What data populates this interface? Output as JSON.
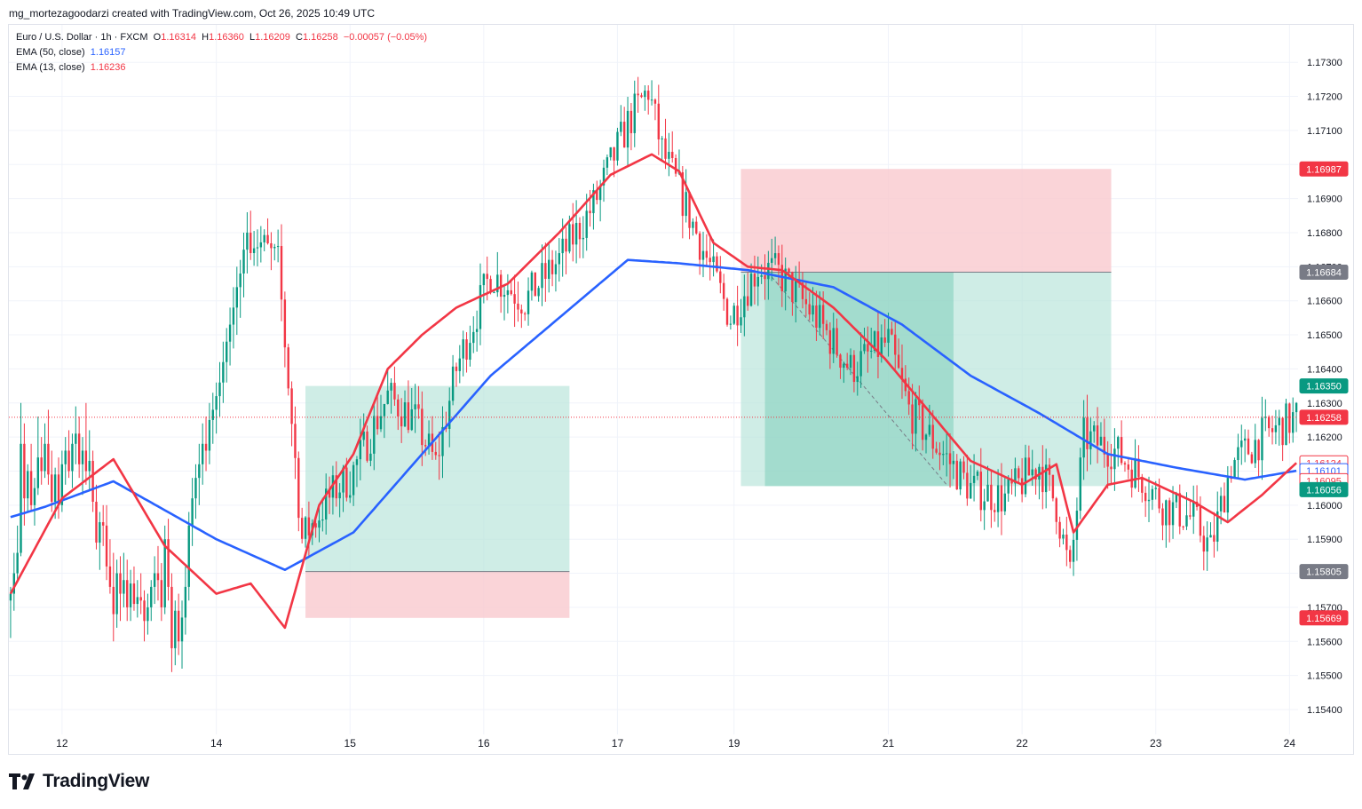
{
  "attribution": "mg_mortezagoodarzi created with TradingView.com, Oct 26, 2025 10:49 UTC",
  "brand": "TradingView",
  "legend": {
    "symbol": "Euro / U.S. Dollar · 1h · FXCM",
    "o_label": "O",
    "o": "1.16314",
    "h_label": "H",
    "h": "1.16360",
    "l_label": "L",
    "l": "1.16209",
    "c_label": "C",
    "c": "1.16258",
    "change": "−0.00057 (−0.05%)",
    "ema50_label": "EMA (50, close)",
    "ema50_value": "1.16157",
    "ema13_label": "EMA (13, close)",
    "ema13_value": "1.16236"
  },
  "chart_data": {
    "type": "candlestick",
    "xlabel": "",
    "ylabel": "",
    "ylim": [
      1.1534,
      1.1741
    ],
    "y_ticks": [
      "1.17300",
      "1.17200",
      "1.17100",
      "1.17000",
      "1.16900",
      "1.16800",
      "1.16700",
      "1.16600",
      "1.16500",
      "1.16400",
      "1.16300",
      "1.16200",
      "1.16100",
      "1.16000",
      "1.15900",
      "1.15800",
      "1.15700",
      "1.15600",
      "1.15500",
      "1.15400"
    ],
    "x_ticks": [
      {
        "label": "12",
        "i": 15
      },
      {
        "label": "14",
        "i": 60
      },
      {
        "label": "15",
        "i": 99
      },
      {
        "label": "16",
        "i": 138
      },
      {
        "label": "17",
        "i": 177
      },
      {
        "label": "19",
        "i": 211
      },
      {
        "label": "21",
        "i": 256
      },
      {
        "label": "22",
        "i": 295
      },
      {
        "label": "23",
        "i": 334
      },
      {
        "label": "24",
        "i": 373
      }
    ],
    "colors": {
      "up": "#089981",
      "down": "#f23645",
      "ema13": "#f23645",
      "ema50": "#2962ff",
      "profit": "#b6e3d8",
      "stop": "#f9c9ce",
      "last": "#f23645"
    },
    "ema50_anchors": [
      [
        0,
        1.15965
      ],
      [
        10,
        1.15995
      ],
      [
        30,
        1.1607
      ],
      [
        60,
        1.159
      ],
      [
        80,
        1.1581
      ],
      [
        100,
        1.1592
      ],
      [
        120,
        1.1615
      ],
      [
        140,
        1.1638
      ],
      [
        160,
        1.1655
      ],
      [
        180,
        1.1672
      ],
      [
        195,
        1.1671
      ],
      [
        215,
        1.1669
      ],
      [
        240,
        1.1664
      ],
      [
        260,
        1.1653
      ],
      [
        280,
        1.1638
      ],
      [
        300,
        1.1627
      ],
      [
        320,
        1.1615
      ],
      [
        340,
        1.1611
      ],
      [
        360,
        1.16075
      ],
      [
        375,
        1.16101
      ]
    ],
    "ema13_anchors": [
      [
        0,
        1.1574
      ],
      [
        15,
        1.1602
      ],
      [
        30,
        1.16135
      ],
      [
        45,
        1.1588
      ],
      [
        60,
        1.1574
      ],
      [
        70,
        1.1577
      ],
      [
        80,
        1.1564
      ],
      [
        90,
        1.16
      ],
      [
        100,
        1.1615
      ],
      [
        110,
        1.164
      ],
      [
        120,
        1.165
      ],
      [
        130,
        1.1658
      ],
      [
        145,
        1.1665
      ],
      [
        160,
        1.168
      ],
      [
        175,
        1.1697
      ],
      [
        187,
        1.1703
      ],
      [
        195,
        1.1698
      ],
      [
        205,
        1.1677
      ],
      [
        215,
        1.167
      ],
      [
        225,
        1.1669
      ],
      [
        240,
        1.1658
      ],
      [
        255,
        1.1643
      ],
      [
        270,
        1.1625
      ],
      [
        280,
        1.1613
      ],
      [
        295,
        1.1606
      ],
      [
        305,
        1.1612
      ],
      [
        310,
        1.1592
      ],
      [
        320,
        1.1606
      ],
      [
        330,
        1.1608
      ],
      [
        345,
        1.1601
      ],
      [
        355,
        1.1595
      ],
      [
        365,
        1.1603
      ],
      [
        375,
        1.16124
      ]
    ],
    "candle_count": 376,
    "candles": [
      [
        0,
        1.1572,
        1.1576,
        1.1561,
        1.1574
      ],
      [
        1,
        1.1574,
        1.1586,
        1.1569,
        1.158
      ],
      [
        2,
        1.158,
        1.1594,
        1.1578,
        1.1586
      ],
      [
        3,
        1.1586,
        1.163,
        1.1585,
        1.1618
      ],
      [
        4,
        1.1618,
        1.1624,
        1.1594,
        1.1602
      ],
      [
        5,
        1.1602,
        1.1612,
        1.1598,
        1.161
      ],
      [
        6,
        1.161,
        1.1618,
        1.1598,
        1.16
      ],
      [
        7,
        1.16,
        1.1608,
        1.1594,
        1.1605
      ],
      [
        8,
        1.1605,
        1.1626,
        1.1603,
        1.1614
      ],
      [
        9,
        1.1614,
        1.162,
        1.1606,
        1.161
      ],
      [
        10,
        1.161,
        1.1624,
        1.1608,
        1.1618
      ],
      [
        11,
        1.1618,
        1.1628,
        1.1606,
        1.1609
      ],
      [
        12,
        1.1609,
        1.1616,
        1.1598,
        1.1601
      ],
      [
        13,
        1.1601,
        1.1611,
        1.1596,
        1.1609
      ],
      [
        14,
        1.1609,
        1.1614,
        1.1596,
        1.16
      ],
      [
        15,
        1.16,
        1.1616,
        1.1598,
        1.1612
      ],
      [
        16,
        1.1612,
        1.162,
        1.1606,
        1.1616
      ],
      [
        17,
        1.1616,
        1.1622,
        1.1608,
        1.161
      ],
      [
        18,
        1.161,
        1.1621,
        1.1605,
        1.1618
      ],
      [
        19,
        1.1618,
        1.1629,
        1.1612,
        1.1621
      ],
      [
        20,
        1.1621,
        1.1626,
        1.1608,
        1.1612
      ],
      [
        21,
        1.1612,
        1.162,
        1.1603,
        1.1616
      ],
      [
        22,
        1.1616,
        1.163,
        1.1606,
        1.161
      ],
      [
        23,
        1.161,
        1.1622,
        1.1604,
        1.1613
      ],
      [
        24,
        1.1613,
        1.1616,
        1.1598,
        1.1601
      ],
      [
        25,
        1.1601,
        1.1606,
        1.1587,
        1.1589
      ],
      [
        26,
        1.1589,
        1.1598,
        1.1581,
        1.1595
      ],
      [
        27,
        1.1595,
        1.16,
        1.1588,
        1.1594
      ],
      [
        28,
        1.1594,
        1.16,
        1.1578,
        1.1582
      ],
      [
        29,
        1.1582,
        1.159,
        1.1574,
        1.1576
      ],
      [
        30,
        1.1576,
        1.1586,
        1.156,
        1.1568
      ],
      [
        31,
        1.1568,
        1.1584,
        1.1564,
        1.158
      ],
      [
        32,
        1.158,
        1.1585,
        1.1566,
        1.1574
      ],
      [
        33,
        1.1574,
        1.1586,
        1.157,
        1.1578
      ],
      [
        34,
        1.1578,
        1.1584,
        1.1566,
        1.157
      ],
      [
        35,
        1.157,
        1.1581,
        1.1566,
        1.1577
      ],
      [
        36,
        1.1577,
        1.1582,
        1.1569,
        1.1571
      ],
      [
        37,
        1.1571,
        1.1578,
        1.1567,
        1.1573
      ],
      [
        38,
        1.1573,
        1.158,
        1.1568,
        1.1572
      ],
      [
        39,
        1.1572,
        1.1575,
        1.156,
        1.1566
      ],
      [
        40,
        1.1566,
        1.1574,
        1.1562,
        1.157
      ],
      [
        41,
        1.157,
        1.1578,
        1.1566,
        1.1576
      ],
      [
        42,
        1.1576,
        1.1585,
        1.1571,
        1.158
      ],
      [
        43,
        1.158,
        1.1588,
        1.1572,
        1.1578
      ],
      [
        44,
        1.1578,
        1.1583,
        1.1566,
        1.157
      ],
      [
        45,
        1.157,
        1.1594,
        1.1568,
        1.159
      ],
      [
        46,
        1.159,
        1.1596,
        1.1572,
        1.1576
      ],
      [
        47,
        1.1576,
        1.158,
        1.1551,
        1.1558
      ],
      [
        48,
        1.1558,
        1.1572,
        1.1553,
        1.1569
      ],
      [
        49,
        1.1569,
        1.1574,
        1.1556,
        1.156
      ],
      [
        50,
        1.156,
        1.1572,
        1.1552,
        1.1567
      ],
      [
        51,
        1.1567,
        1.1582,
        1.1562,
        1.1576
      ],
      [
        52,
        1.1576,
        1.1598,
        1.1572,
        1.1594
      ],
      [
        53,
        1.1594,
        1.1608,
        1.1588,
        1.1602
      ],
      [
        54,
        1.1602,
        1.1612,
        1.1596,
        1.1608
      ],
      [
        55,
        1.1608,
        1.1618,
        1.16,
        1.1612
      ],
      [
        56,
        1.1612,
        1.1624,
        1.1606,
        1.1618
      ],
      [
        57,
        1.1618,
        1.1626,
        1.161,
        1.1616
      ],
      [
        58,
        1.1616,
        1.163,
        1.1612,
        1.1625
      ],
      [
        59,
        1.1625,
        1.1633,
        1.1618,
        1.1628
      ],
      [
        60,
        1.1628,
        1.1636,
        1.1621,
        1.1632
      ],
      [
        61,
        1.1632,
        1.1642,
        1.1626,
        1.1636
      ],
      [
        62,
        1.1636,
        1.1648,
        1.163,
        1.1642
      ],
      [
        63,
        1.1642,
        1.1652,
        1.1636,
        1.1648
      ],
      [
        64,
        1.1648,
        1.1658,
        1.1641,
        1.1653
      ],
      [
        65,
        1.1653,
        1.1664,
        1.1646,
        1.1658
      ],
      [
        66,
        1.1658,
        1.167,
        1.165,
        1.1664
      ],
      [
        67,
        1.1664,
        1.1672,
        1.1655,
        1.1668
      ],
      [
        68,
        1.1668,
        1.168,
        1.1661,
        1.1675
      ],
      [
        69,
        1.1675,
        1.1686,
        1.1668,
        1.168
      ]
    ]
  }
}
